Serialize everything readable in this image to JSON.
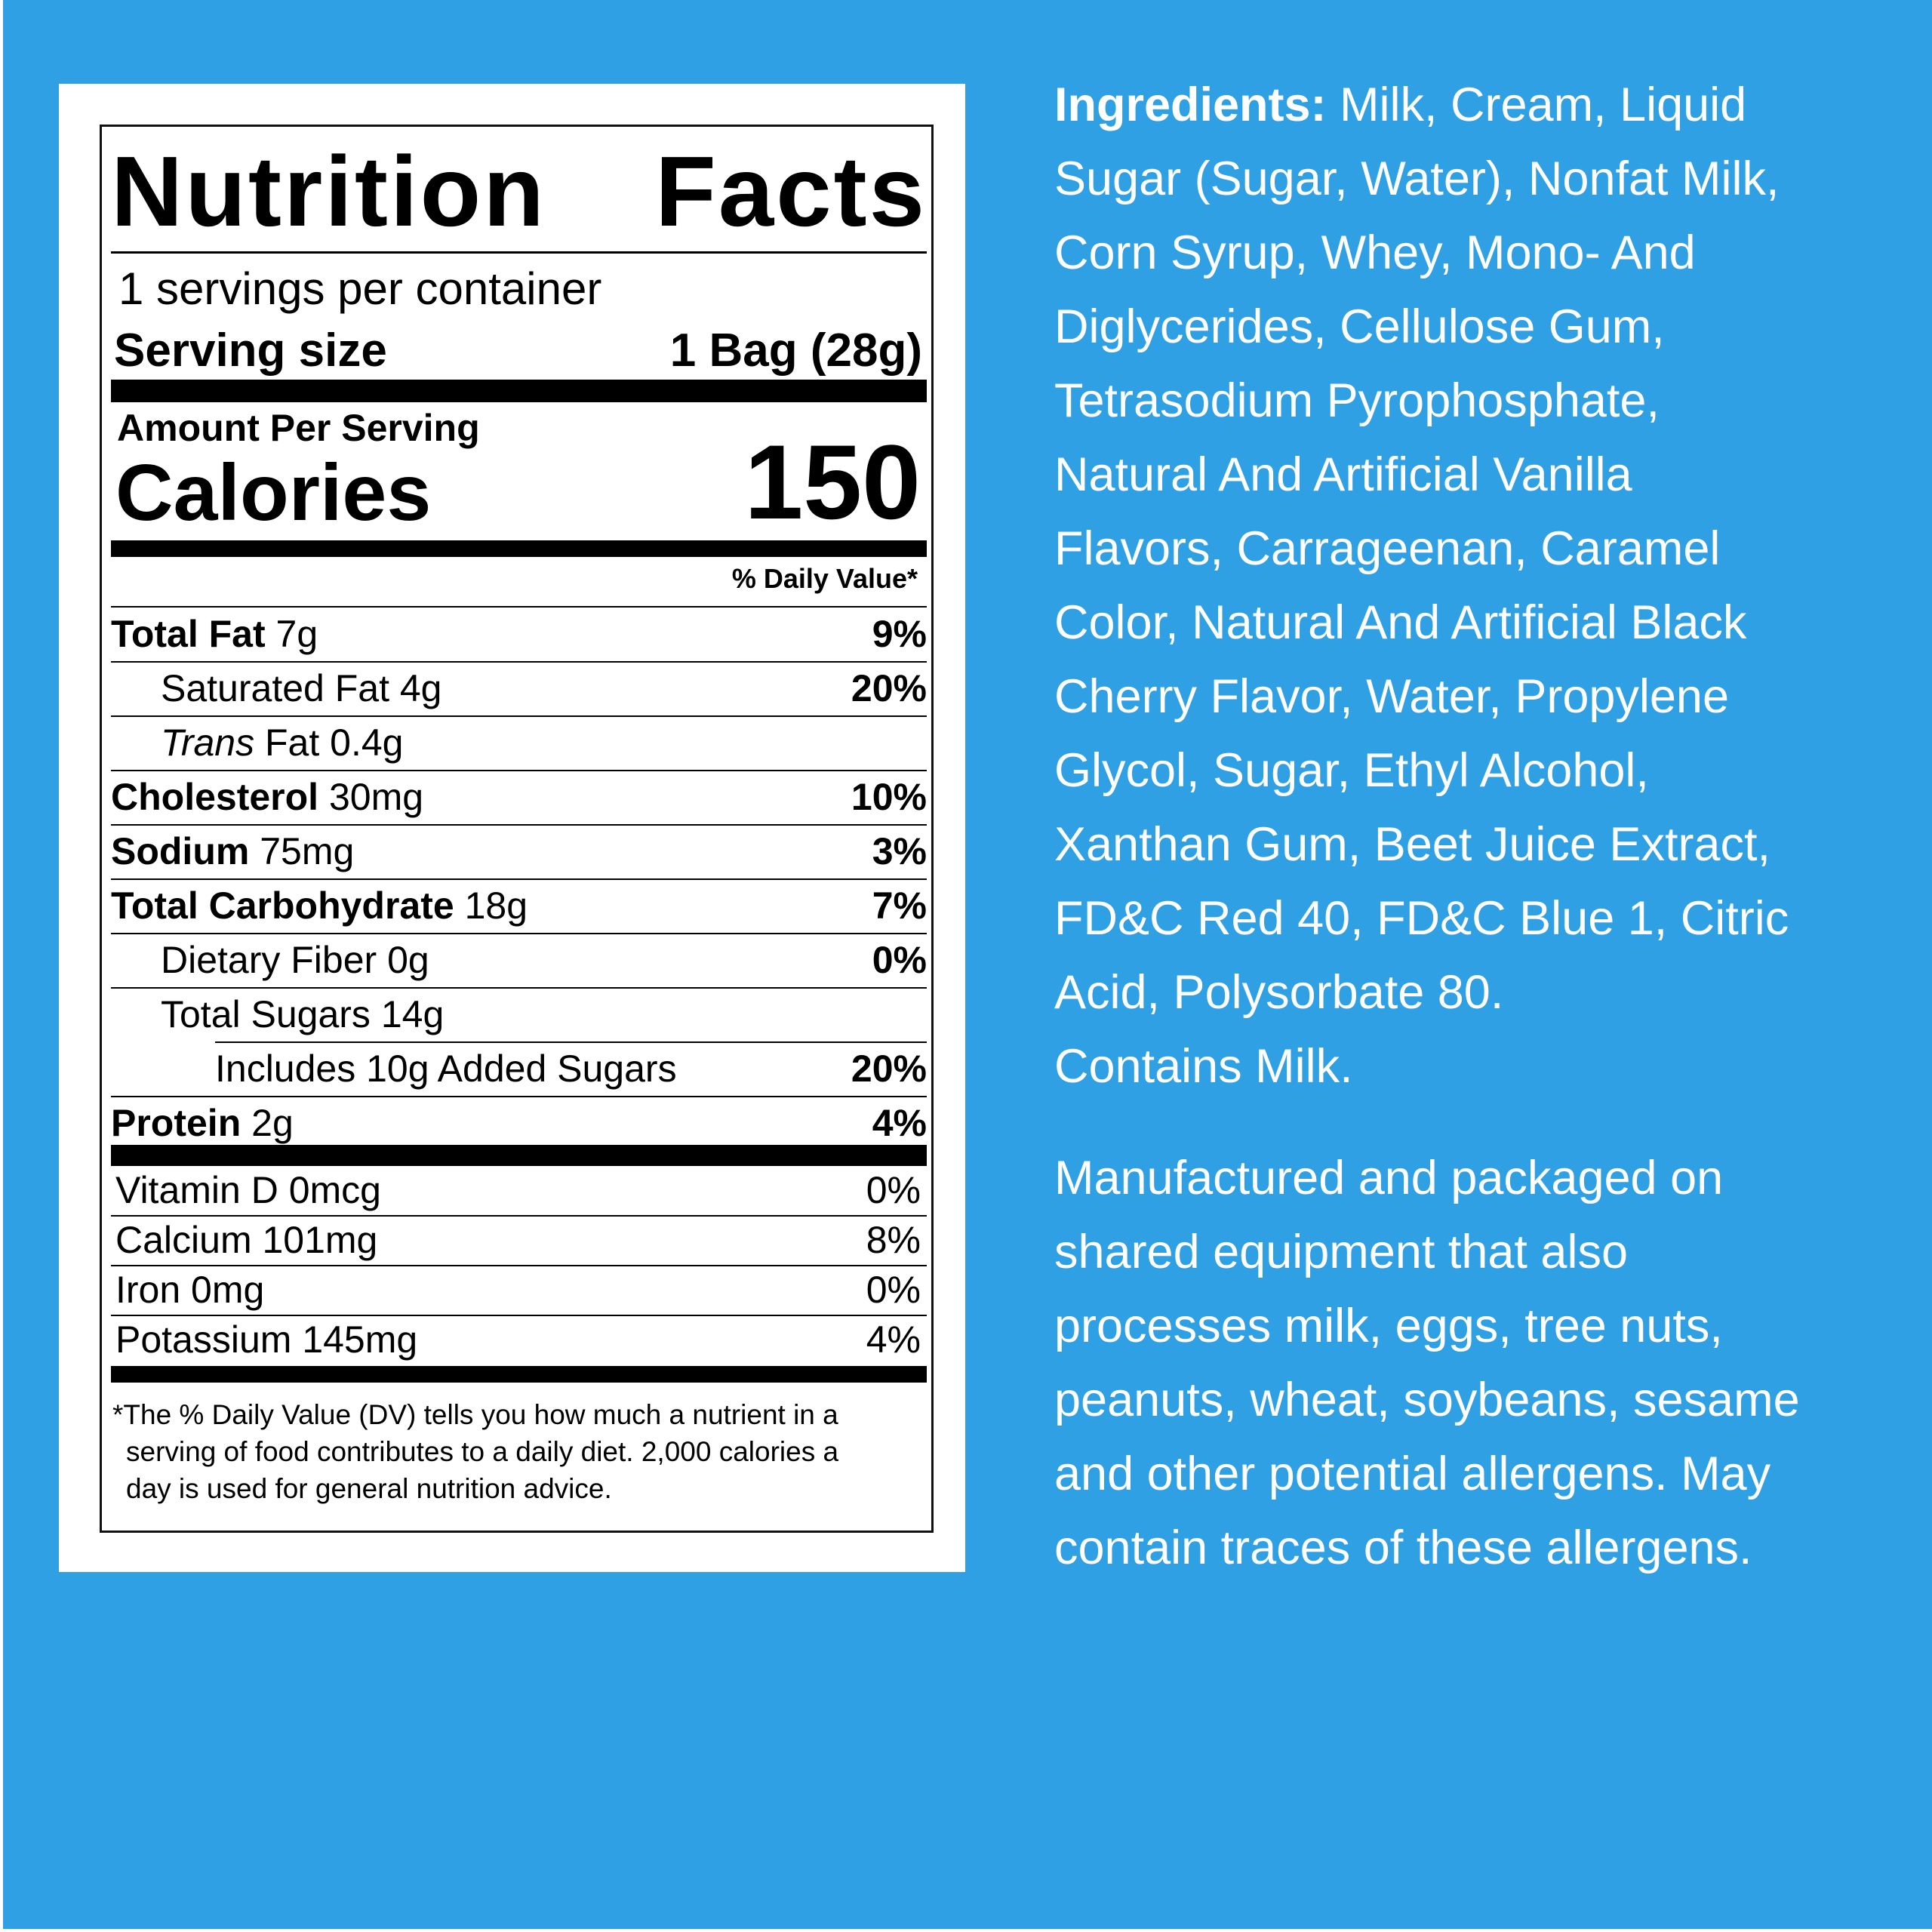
{
  "colors": {
    "background": "#2fa0e4",
    "label": "#ffffff",
    "text": "#000000",
    "right_text": "#ffffff"
  },
  "label": {
    "title_word1": "Nutrition",
    "title_word2": "Facts",
    "servings": "1 servings per container",
    "serving_size_label": "Serving size",
    "serving_size_value": "1 Bag (28g)",
    "amount_per_serving": "Amount Per Serving",
    "calories_label": "Calories",
    "calories_value": "150",
    "daily_value_header": "% Daily Value*",
    "nutrients": [
      {
        "label": "Total Fat",
        "amount": "7g",
        "dv": "9%",
        "bold": true,
        "indent": 0
      },
      {
        "label": "Saturated Fat",
        "amount": "4g",
        "dv": "20%",
        "bold": false,
        "indent": 1
      },
      {
        "label_italic": "Trans",
        "label": "Fat",
        "amount": "0.4g",
        "dv": "",
        "bold": false,
        "indent": 1
      },
      {
        "label": "Cholesterol",
        "amount": "30mg",
        "dv": "10%",
        "bold": true,
        "indent": 0
      },
      {
        "label": "Sodium",
        "amount": "75mg",
        "dv": "3%",
        "bold": true,
        "indent": 0
      },
      {
        "label": "Total Carbohydrate",
        "amount": "18g",
        "dv": "7%",
        "bold": true,
        "indent": 0
      },
      {
        "label": "Dietary Fiber",
        "amount": "0g",
        "dv": "0%",
        "bold": false,
        "indent": 1
      },
      {
        "label": "Total Sugars",
        "amount": "14g",
        "dv": "",
        "bold": false,
        "indent": 1
      },
      {
        "label": "Includes 10g Added Sugars",
        "amount": "",
        "dv": "20%",
        "bold": false,
        "indent": 2
      },
      {
        "label": "Protein",
        "amount": "2g",
        "dv": "4%",
        "bold": true,
        "indent": 0
      }
    ],
    "vitamins": [
      {
        "label": "Vitamin D 0mcg",
        "dv": "0%"
      },
      {
        "label": "Calcium 101mg",
        "dv": "8%"
      },
      {
        "label": "Iron 0mg",
        "dv": "0%"
      },
      {
        "label": "Potassium 145mg",
        "dv": "4%"
      }
    ],
    "footnote_lines": [
      "*The % Daily Value (DV) tells you how much a nutrient in a",
      "serving of food contributes to a daily diet. 2,000 calories a",
      "day is used for general nutrition advice."
    ]
  },
  "ingredients": {
    "heading": "Ingredients:",
    "lines": [
      "Milk, Cream, Liquid",
      "Sugar (Sugar, Water), Nonfat Milk,",
      "Corn Syrup, Whey, Mono- And",
      "Diglycerides, Cellulose Gum,",
      "Tetrasodium Pyrophosphate,",
      "Natural And Artificial Vanilla",
      "Flavors, Carrageenan, Caramel",
      "Color, Natural And Artificial Black",
      "Cherry Flavor, Water, Propylene",
      "Glycol, Sugar, Ethyl Alcohol,",
      "Xanthan Gum, Beet Juice Extract,",
      "FD&C Red 40, FD&C Blue 1, Citric",
      "Acid, Polysorbate 80."
    ],
    "contains": "Contains Milk."
  },
  "allergen_lines": [
    "Manufactured and packaged on",
    "shared equipment that also",
    "processes milk, eggs, tree nuts,",
    "peanuts, wheat, soybeans, sesame",
    "and other potential allergens. May",
    "contain traces of these allergens."
  ]
}
